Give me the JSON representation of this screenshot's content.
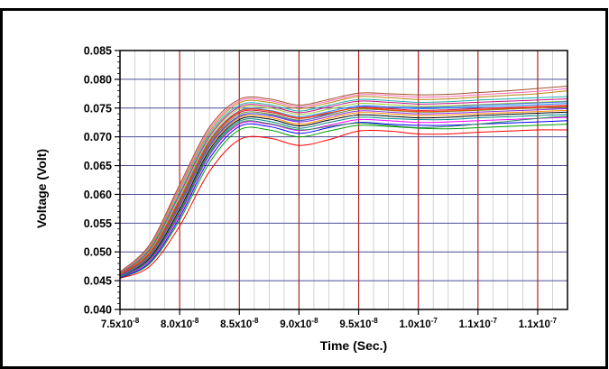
{
  "chart_data": {
    "type": "line",
    "title": "",
    "xlabel": "Time (Sec.)",
    "ylabel": "Voltage (Volt)",
    "xlim": [
      7.5e-08,
      1.125e-07
    ],
    "ylim": [
      0.04,
      0.085
    ],
    "grid": true,
    "legend": "none",
    "x_tick_labels": [
      {
        "value": 7.5e-08,
        "base": "7.5x10",
        "exp": "-8"
      },
      {
        "value": 8e-08,
        "base": "8.0x10",
        "exp": "-8"
      },
      {
        "value": 8.5e-08,
        "base": "8.5x10",
        "exp": "-8"
      },
      {
        "value": 9e-08,
        "base": "9.0x10",
        "exp": "-8"
      },
      {
        "value": 9.5e-08,
        "base": "9.5x10",
        "exp": "-8"
      },
      {
        "value": 1e-07,
        "base": "1.0x10",
        "exp": "-7"
      },
      {
        "value": 1.05e-07,
        "base": "1.1x10",
        "exp": "-7"
      },
      {
        "value": 1.1e-07,
        "base": "1.1x10",
        "exp": "-7"
      }
    ],
    "y_tick_labels": [
      {
        "value": 0.04,
        "label": "0.040"
      },
      {
        "value": 0.045,
        "label": "0.045"
      },
      {
        "value": 0.05,
        "label": "0.050"
      },
      {
        "value": 0.055,
        "label": "0.055"
      },
      {
        "value": 0.06,
        "label": "0.060"
      },
      {
        "value": 0.065,
        "label": "0.065"
      },
      {
        "value": 0.07,
        "label": "0.070"
      },
      {
        "value": 0.075,
        "label": "0.075"
      },
      {
        "value": 0.08,
        "label": "0.080"
      },
      {
        "value": 0.085,
        "label": "0.085"
      }
    ],
    "colors": {
      "major_vertical_grid": "#b22222",
      "horizontal_grid": "#4d4d99",
      "minor_vertical_grid": "#c8c8c8",
      "axis": "#000000"
    },
    "x": [
      7.5e-08,
      7.75e-08,
      8e-08,
      8.25e-08,
      8.5e-08,
      8.75e-08,
      9e-08,
      9.25e-08,
      9.5e-08,
      9.75e-08,
      1e-07,
      1.025e-07,
      1.05e-07,
      1.075e-07,
      1.1e-07,
      1.125e-07
    ],
    "series": [
      {
        "color": "#ff0000",
        "values": [
          0.0454,
          0.0475,
          0.0545,
          0.064,
          0.0695,
          0.0698,
          0.0685,
          0.0695,
          0.071,
          0.071,
          0.0705,
          0.0705,
          0.0708,
          0.071,
          0.0712,
          0.0712
        ]
      },
      {
        "color": "#00a000",
        "values": [
          0.0455,
          0.048,
          0.0555,
          0.0655,
          0.0712,
          0.0712,
          0.07,
          0.071,
          0.072,
          0.0718,
          0.0715,
          0.0714,
          0.0716,
          0.0718,
          0.072,
          0.0722
        ]
      },
      {
        "color": "#0000ff",
        "values": [
          0.0455,
          0.0482,
          0.056,
          0.0662,
          0.0718,
          0.0718,
          0.0706,
          0.0716,
          0.0725,
          0.0722,
          0.072,
          0.072,
          0.0722,
          0.0724,
          0.0726,
          0.0728
        ]
      },
      {
        "color": "#ff00ff",
        "values": [
          0.0456,
          0.0485,
          0.0565,
          0.0668,
          0.0722,
          0.0722,
          0.0711,
          0.072,
          0.073,
          0.0728,
          0.0725,
          0.0726,
          0.0728,
          0.073,
          0.0732,
          0.0734
        ]
      },
      {
        "color": "#008b8b",
        "values": [
          0.0457,
          0.0488,
          0.057,
          0.0673,
          0.0727,
          0.0727,
          0.0715,
          0.0725,
          0.0734,
          0.0732,
          0.073,
          0.073,
          0.0733,
          0.0735,
          0.0737,
          0.0739
        ]
      },
      {
        "color": "#000000",
        "values": [
          0.0458,
          0.049,
          0.0574,
          0.0677,
          0.073,
          0.0731,
          0.0719,
          0.0729,
          0.0738,
          0.0736,
          0.0733,
          0.0734,
          0.0737,
          0.0739,
          0.0741,
          0.0743
        ]
      },
      {
        "color": "#ff8c00",
        "values": [
          0.0458,
          0.0492,
          0.0578,
          0.0681,
          0.0733,
          0.0734,
          0.0722,
          0.0732,
          0.0742,
          0.074,
          0.0737,
          0.0738,
          0.074,
          0.0742,
          0.0744,
          0.0746
        ]
      },
      {
        "color": "#8a2be2",
        "values": [
          0.0459,
          0.0494,
          0.0582,
          0.0685,
          0.0736,
          0.0737,
          0.0726,
          0.0735,
          0.0745,
          0.0743,
          0.074,
          0.0741,
          0.0743,
          0.0745,
          0.0747,
          0.0749
        ]
      },
      {
        "color": "#6b8e23",
        "values": [
          0.046,
          0.0496,
          0.0585,
          0.0688,
          0.0739,
          0.074,
          0.0729,
          0.0738,
          0.0748,
          0.0746,
          0.0743,
          0.0744,
          0.0746,
          0.0748,
          0.075,
          0.0752
        ]
      },
      {
        "color": "#dc143c",
        "values": [
          0.046,
          0.0498,
          0.0588,
          0.0691,
          0.0742,
          0.0743,
          0.0732,
          0.0741,
          0.0751,
          0.0749,
          0.0746,
          0.0747,
          0.0749,
          0.0751,
          0.0753,
          0.0755
        ]
      },
      {
        "color": "#1e90ff",
        "values": [
          0.0461,
          0.05,
          0.0592,
          0.0694,
          0.0745,
          0.0746,
          0.0735,
          0.0744,
          0.0754,
          0.0752,
          0.0749,
          0.075,
          0.0752,
          0.0754,
          0.0756,
          0.0758
        ]
      },
      {
        "color": "#9acd32",
        "values": [
          0.0462,
          0.0502,
          0.0596,
          0.0698,
          0.0749,
          0.075,
          0.0739,
          0.0748,
          0.0758,
          0.0756,
          0.0753,
          0.0754,
          0.0756,
          0.0758,
          0.076,
          0.0762
        ]
      },
      {
        "color": "#c71585",
        "values": [
          0.0462,
          0.0504,
          0.06,
          0.0701,
          0.0752,
          0.0753,
          0.0742,
          0.0752,
          0.0762,
          0.076,
          0.0757,
          0.0758,
          0.076,
          0.0762,
          0.0764,
          0.0766
        ]
      },
      {
        "color": "#20b2aa",
        "values": [
          0.0463,
          0.0506,
          0.0604,
          0.0705,
          0.0755,
          0.0756,
          0.0745,
          0.0755,
          0.0765,
          0.0763,
          0.076,
          0.0761,
          0.0764,
          0.0766,
          0.0768,
          0.077
        ]
      },
      {
        "color": "#b8860b",
        "values": [
          0.0464,
          0.0509,
          0.0609,
          0.0709,
          0.0759,
          0.076,
          0.0749,
          0.0759,
          0.077,
          0.0768,
          0.0765,
          0.0766,
          0.0769,
          0.0772,
          0.0775,
          0.078
        ]
      },
      {
        "color": "#ff69b4",
        "values": [
          0.0464,
          0.0511,
          0.0613,
          0.0713,
          0.0762,
          0.0763,
          0.0752,
          0.0762,
          0.0773,
          0.0772,
          0.0769,
          0.077,
          0.0773,
          0.0776,
          0.0779,
          0.0784
        ]
      },
      {
        "color": "#a0522d",
        "values": [
          0.0465,
          0.0513,
          0.0617,
          0.0717,
          0.0765,
          0.0766,
          0.0755,
          0.0765,
          0.0776,
          0.0775,
          0.0773,
          0.0774,
          0.0777,
          0.078,
          0.0784,
          0.0788
        ]
      },
      {
        "color": "#2e8b57",
        "values": [
          0.0456,
          0.0487,
          0.0568,
          0.067,
          0.0724,
          0.0723,
          0.0712,
          0.0718,
          0.0724,
          0.072,
          0.0716,
          0.0718,
          0.0722,
          0.0727,
          0.0732,
          0.0736
        ]
      },
      {
        "color": "#4169e1",
        "values": [
          0.0458,
          0.0493,
          0.058,
          0.0683,
          0.0735,
          0.0738,
          0.0728,
          0.074,
          0.0752,
          0.0752,
          0.0751,
          0.0752,
          0.0755,
          0.0757,
          0.0759,
          0.0761
        ]
      },
      {
        "color": "#ff4500",
        "values": [
          0.0461,
          0.0499,
          0.059,
          0.0692,
          0.0744,
          0.0745,
          0.0733,
          0.0742,
          0.075,
          0.0747,
          0.0744,
          0.0745,
          0.0747,
          0.0749,
          0.0751,
          0.0753
        ]
      }
    ]
  }
}
